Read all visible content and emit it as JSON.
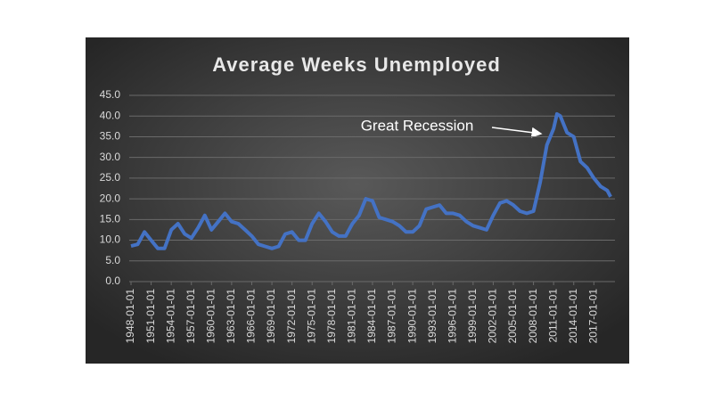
{
  "chart_data": {
    "type": "line",
    "title": "Average Weeks Unemployed",
    "annotation": "Great Recession",
    "x": [
      "1948-01-01",
      "1949-01-01",
      "1950-01-01",
      "1951-01-01",
      "1952-01-01",
      "1953-01-01",
      "1954-01-01",
      "1955-01-01",
      "1956-01-01",
      "1957-01-01",
      "1958-01-01",
      "1959-01-01",
      "1960-01-01",
      "1961-01-01",
      "1962-01-01",
      "1963-01-01",
      "1964-01-01",
      "1965-01-01",
      "1966-01-01",
      "1967-01-01",
      "1968-01-01",
      "1969-01-01",
      "1970-01-01",
      "1971-01-01",
      "1972-01-01",
      "1973-01-01",
      "1974-01-01",
      "1975-01-01",
      "1976-01-01",
      "1977-01-01",
      "1978-01-01",
      "1979-01-01",
      "1980-01-01",
      "1981-01-01",
      "1982-01-01",
      "1983-01-01",
      "1984-01-01",
      "1985-01-01",
      "1986-01-01",
      "1987-01-01",
      "1988-01-01",
      "1989-01-01",
      "1990-01-01",
      "1991-01-01",
      "1992-01-01",
      "1993-01-01",
      "1994-01-01",
      "1995-01-01",
      "1996-01-01",
      "1997-01-01",
      "1998-01-01",
      "1999-01-01",
      "2000-01-01",
      "2001-01-01",
      "2002-01-01",
      "2003-01-01",
      "2004-01-01",
      "2005-01-01",
      "2006-01-01",
      "2007-01-01",
      "2008-01-01",
      "2009-01-01",
      "2010-01-01",
      "2011-01-01",
      "2011-07-01",
      "2012-01-01",
      "2013-01-01",
      "2014-01-01",
      "2015-01-01",
      "2016-01-01",
      "2017-01-01",
      "2018-01-01",
      "2019-01-01",
      "2019-07-01"
    ],
    "values": [
      8.6,
      9.0,
      12.0,
      10.0,
      8.0,
      8.0,
      12.5,
      14.0,
      11.5,
      10.5,
      13.0,
      16.0,
      12.5,
      14.5,
      16.5,
      14.5,
      14.0,
      12.5,
      11.0,
      9.0,
      8.5,
      8.0,
      8.5,
      11.5,
      12.0,
      10.0,
      10.0,
      14.0,
      16.5,
      14.5,
      12.0,
      11.0,
      11.0,
      14.0,
      16.0,
      20.0,
      19.5,
      15.5,
      15.0,
      14.5,
      13.5,
      12.0,
      12.0,
      13.5,
      17.5,
      18.0,
      18.5,
      16.5,
      16.5,
      16.0,
      14.5,
      13.5,
      13.0,
      12.5,
      16.0,
      19.0,
      19.5,
      18.5,
      17.0,
      16.5,
      17.0,
      24.0,
      33.0,
      37.0,
      40.5,
      40.0,
      36.0,
      35.0,
      29.0,
      27.5,
      25.0,
      23.0,
      22.0,
      20.5
    ],
    "color": "#4472c4",
    "xlim": [
      "1948-01-01",
      "2019-10-01"
    ],
    "xticks": [
      "1948-01-01",
      "1951-01-01",
      "1954-01-01",
      "1957-01-01",
      "1960-01-01",
      "1963-01-01",
      "1966-01-01",
      "1969-01-01",
      "1972-01-01",
      "1975-01-01",
      "1978-01-01",
      "1981-01-01",
      "1984-01-01",
      "1987-01-01",
      "1990-01-01",
      "1993-01-01",
      "1996-01-01",
      "1999-01-01",
      "2002-01-01",
      "2005-01-01",
      "2008-01-01",
      "2011-01-01",
      "2014-01-01",
      "2017-01-01"
    ],
    "ylim": [
      0,
      45
    ],
    "yticks": [
      {
        "value": 0,
        "label": "0.0"
      },
      {
        "value": 5,
        "label": "5.0"
      },
      {
        "value": 10,
        "label": "10.0"
      },
      {
        "value": 15,
        "label": "15.0"
      },
      {
        "value": 20,
        "label": "20.0"
      },
      {
        "value": 25,
        "label": "25.0"
      },
      {
        "value": 30,
        "label": "30.0"
      },
      {
        "value": 35,
        "label": "35.0"
      },
      {
        "value": 40,
        "label": "40.0"
      },
      {
        "value": 45,
        "label": "45.0"
      }
    ],
    "grid": true
  }
}
